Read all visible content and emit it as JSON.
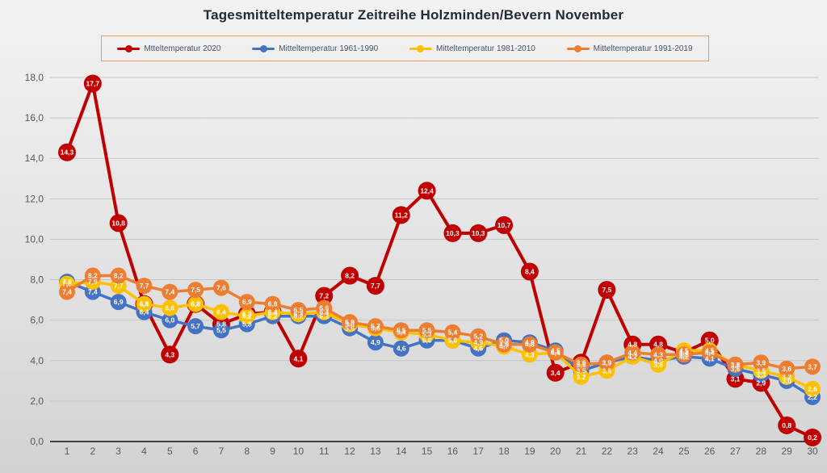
{
  "title": "Tagesmitteltemperatur Zeitreihe Holzminden/Bevern November",
  "legend": [
    {
      "label": "Mtteltemperatur 2020",
      "color": "#c00000"
    },
    {
      "label": "Mitteltemperatur 1961-1990",
      "color": "#4472c4"
    },
    {
      "label": "Mitteltemperatur 1981-2010",
      "color": "#ffc000"
    },
    {
      "label": "Mitteltemperatur 1991-2019",
      "color": "#ed7d31"
    }
  ],
  "chart_data": {
    "type": "line",
    "title": "Tagesmitteltemperatur Zeitreihe Holzminden/Bevern November",
    "x": [
      1,
      2,
      3,
      4,
      5,
      6,
      7,
      8,
      9,
      10,
      11,
      12,
      13,
      14,
      15,
      16,
      17,
      18,
      19,
      20,
      21,
      22,
      23,
      24,
      25,
      26,
      27,
      28,
      29,
      30
    ],
    "xlabel": "",
    "ylabel": "",
    "ylim": [
      0,
      18
    ],
    "ytick_step": 2,
    "ytick_labels": [
      "0,0",
      "2,0",
      "4,0",
      "6,0",
      "8,0",
      "10,0",
      "12,0",
      "14,0",
      "16,0",
      "18,0"
    ],
    "grid": true,
    "legend_position": "top",
    "decimal_separator": ",",
    "grid_color": "#c6c6c6",
    "axis_color": "#3f3f3f",
    "tick_label_color": "#595959",
    "series": [
      {
        "name": "Mtteltemperatur 2020",
        "color": "#c00000",
        "values": [
          14.3,
          17.7,
          10.8,
          6.8,
          4.3,
          6.8,
          5.8,
          6.3,
          6.4,
          4.1,
          7.2,
          8.2,
          7.7,
          11.2,
          12.4,
          10.3,
          10.3,
          10.7,
          8.4,
          3.4,
          3.9,
          7.5,
          4.8,
          4.8,
          4.4,
          5.0,
          3.1,
          2.9,
          0.8,
          0.2
        ]
      },
      {
        "name": "Mitteltemperatur 1961-1990",
        "color": "#4472c4",
        "values": [
          7.9,
          7.4,
          6.9,
          6.4,
          6.0,
          5.7,
          5.5,
          5.8,
          6.2,
          6.2,
          6.2,
          5.6,
          4.9,
          4.6,
          5.0,
          5.0,
          4.6,
          5.0,
          4.9,
          4.5,
          3.5,
          3.9,
          4.2,
          4.0,
          4.2,
          4.1,
          3.6,
          3.3,
          3.0,
          2.2
        ]
      },
      {
        "name": "Mitteltemperatur 1981-2010",
        "color": "#ffc000",
        "values": [
          7.8,
          7.9,
          7.7,
          6.8,
          6.6,
          6.8,
          6.4,
          6.2,
          6.4,
          6.3,
          6.4,
          5.8,
          5.6,
          5.4,
          5.3,
          5.0,
          4.9,
          4.7,
          4.3,
          4.4,
          3.2,
          3.5,
          4.2,
          3.8,
          4.5,
          4.5,
          3.8,
          3.5,
          3.2,
          2.6
        ]
      },
      {
        "name": "Mitteltemperatur 1991-2019",
        "color": "#ed7d31",
        "values": [
          7.4,
          8.2,
          8.2,
          7.7,
          7.4,
          7.5,
          7.6,
          6.9,
          6.8,
          6.5,
          6.6,
          5.9,
          5.7,
          5.5,
          5.5,
          5.4,
          5.2,
          4.8,
          4.8,
          4.4,
          3.8,
          3.9,
          4.4,
          4.3,
          4.3,
          4.4,
          3.8,
          3.9,
          3.6,
          3.7
        ]
      }
    ]
  }
}
